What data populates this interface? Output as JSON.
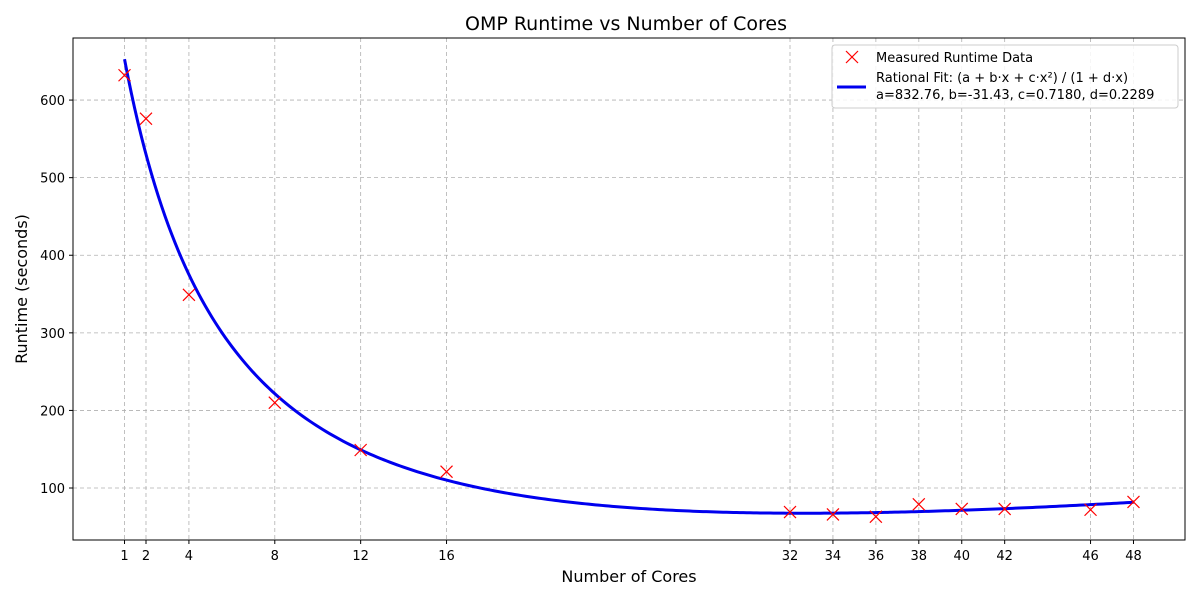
{
  "chart_data": {
    "type": "scatter",
    "title": "OMP Runtime vs Number of Cores",
    "xlabel": "Number of Cores",
    "ylabel": "Runtime (seconds)",
    "xlim": [
      -1.4,
      50.4
    ],
    "ylim": [
      33,
      680
    ],
    "x_ticks": [
      1,
      2,
      4,
      8,
      12,
      16,
      32,
      34,
      36,
      38,
      40,
      42,
      46,
      48
    ],
    "y_ticks": [
      100,
      200,
      300,
      400,
      500,
      600
    ],
    "grid": true,
    "legend_position": "top-right",
    "series": [
      {
        "name": "Measured Runtime Data",
        "kind": "scatter",
        "marker": "x",
        "color": "#ff0000",
        "x": [
          1,
          2,
          4,
          8,
          12,
          16,
          32,
          34,
          36,
          38,
          40,
          42,
          46,
          48
        ],
        "y": [
          632,
          576,
          349,
          210,
          149,
          121,
          69,
          66,
          63,
          79,
          73,
          73,
          72,
          82
        ]
      },
      {
        "name": "Rational Fit: (a + b·x + c·x²) / (1 + d·x)",
        "name_line2": "a=832.76, b=-31.43, c=0.7180, d=0.2289",
        "kind": "line",
        "color": "#0000ee",
        "fit": {
          "a": 832.76,
          "b": -31.43,
          "c": 0.718,
          "d": 0.2289
        },
        "x_range": [
          1,
          48
        ]
      }
    ]
  }
}
